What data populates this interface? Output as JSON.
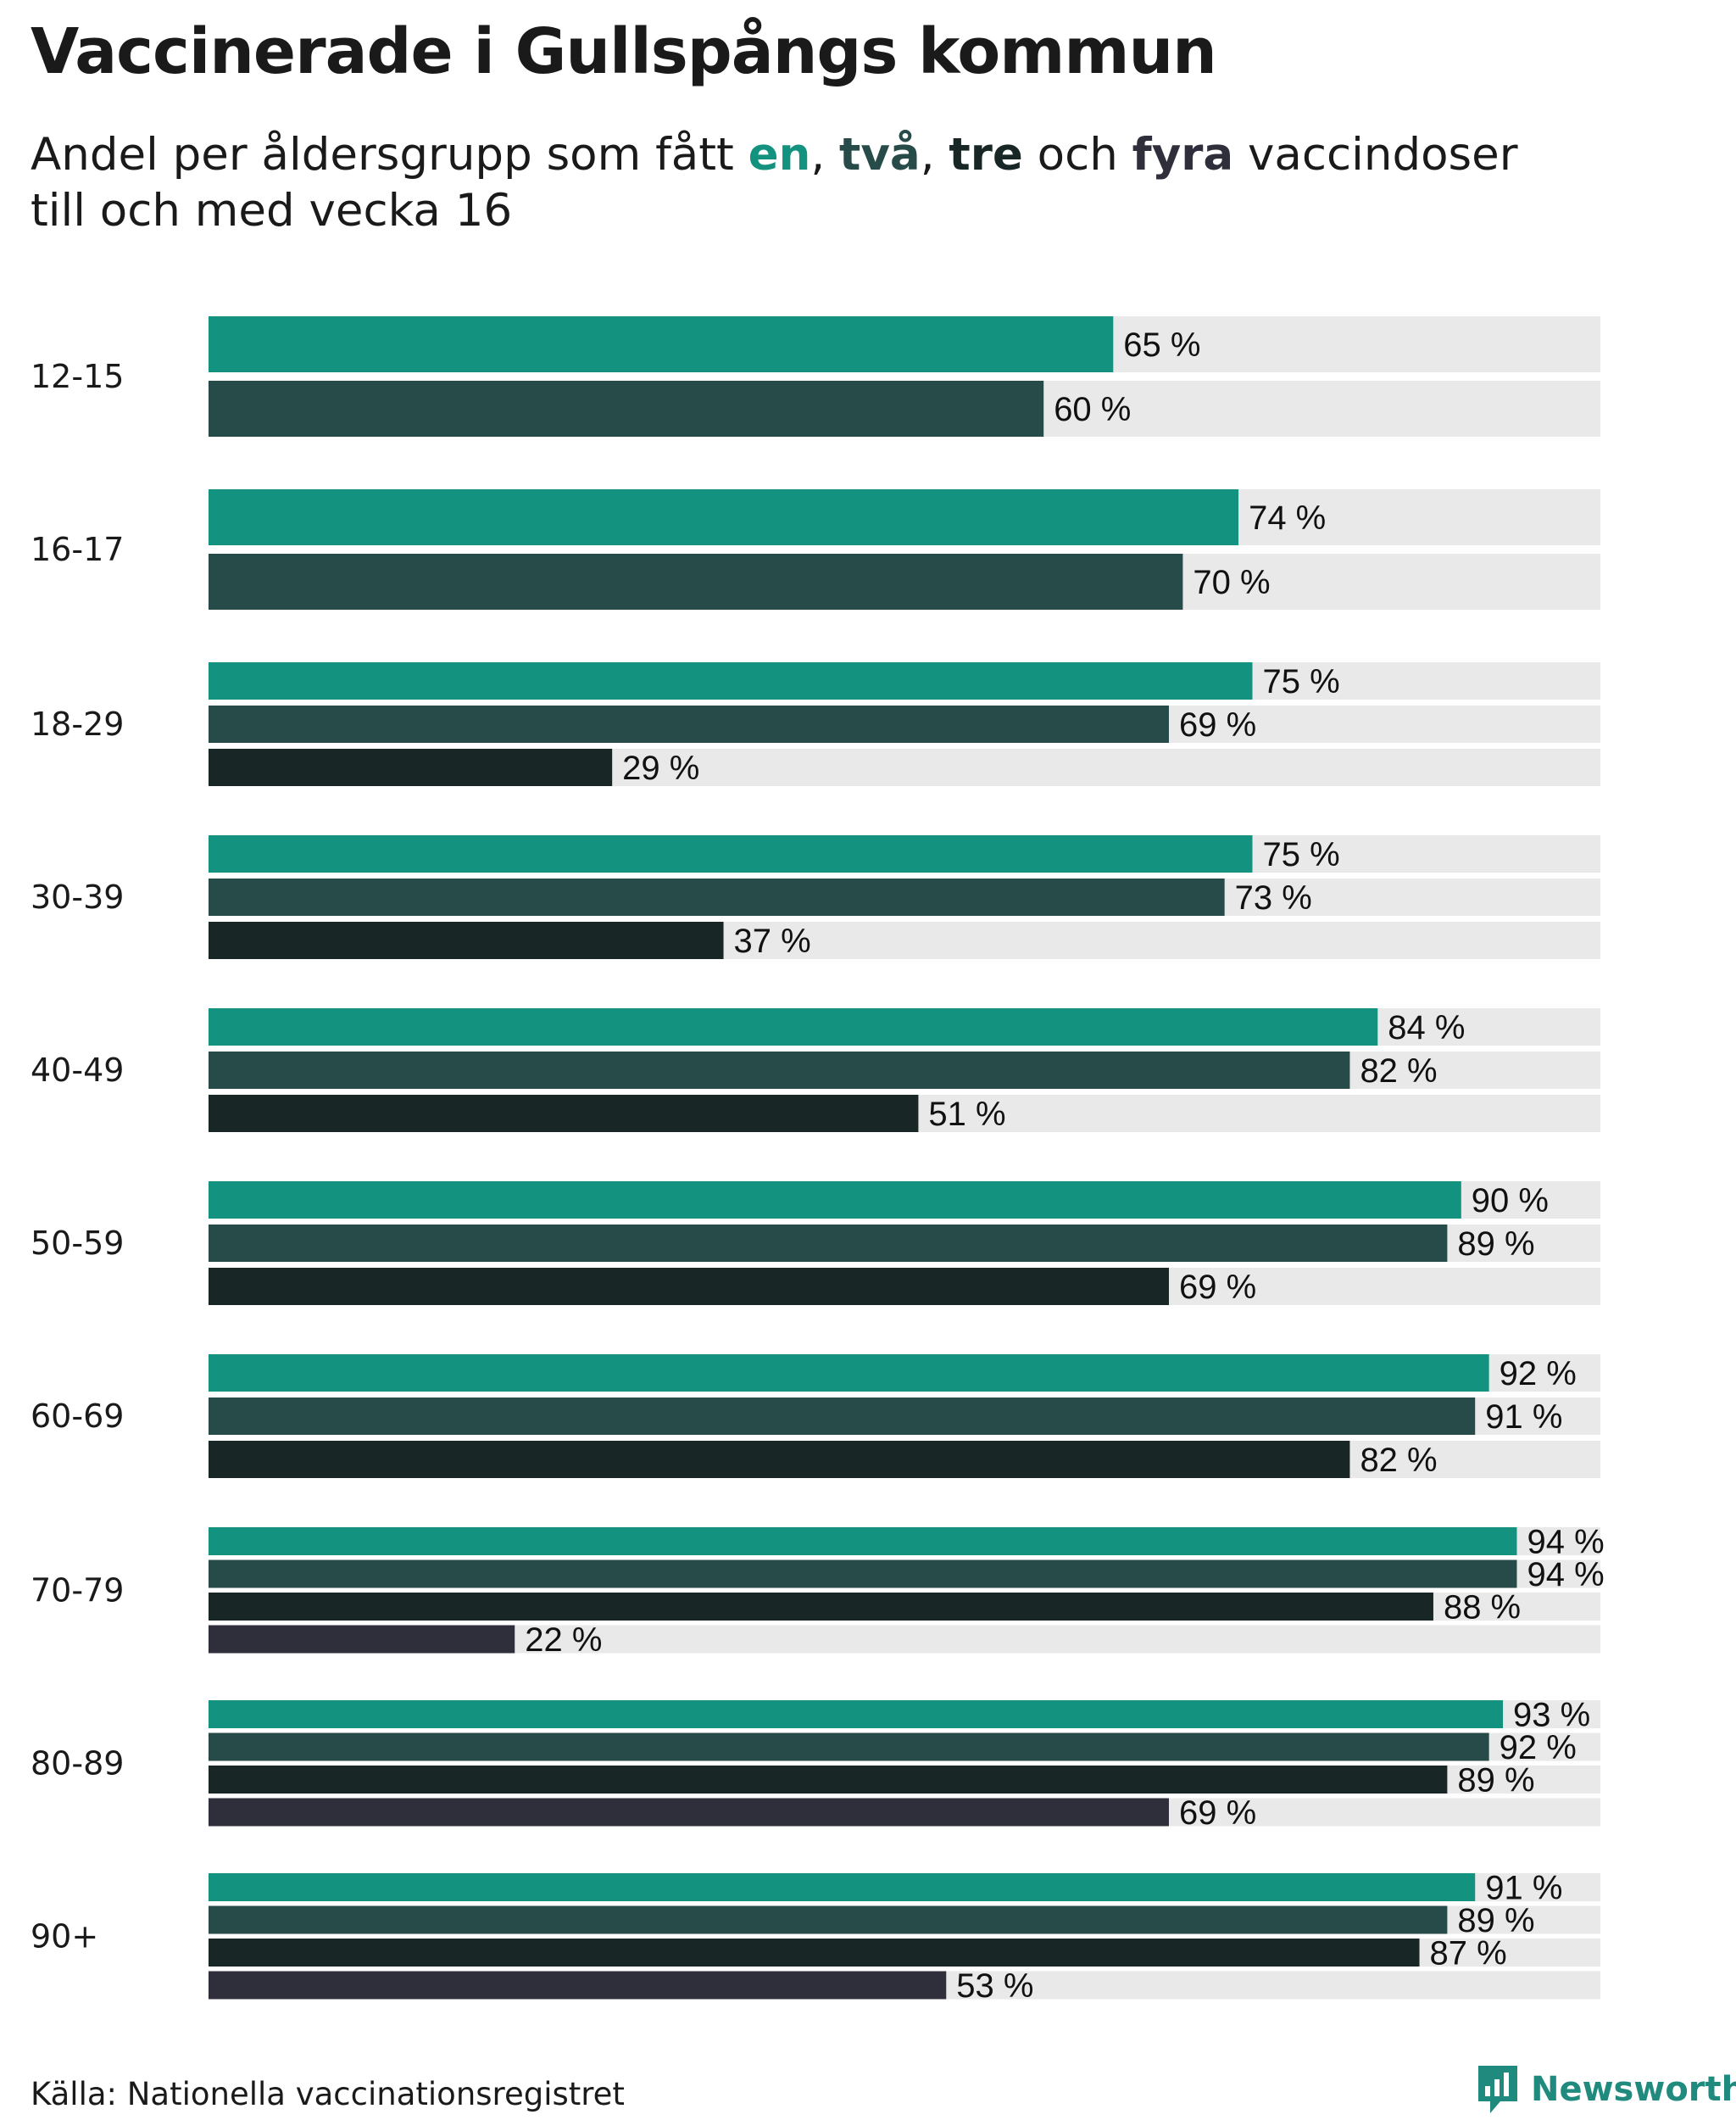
{
  "title": "Vaccinerade i Gullspångs kommun",
  "subtitle": {
    "prefix": "Andel per åldersgrupp som fått ",
    "dose1": "en",
    "sep1": ", ",
    "dose2": "två",
    "sep2": ", ",
    "dose3": "tre",
    "mid": " och ",
    "dose4": "fyra",
    "suffix": " vaccindoser",
    "line2": "till och med vecka 16"
  },
  "colors": {
    "dose1": "#13937f",
    "dose2": "#274b48",
    "dose3": "#182725",
    "dose4": "#2f2f3b",
    "track": "#e9e9e9"
  },
  "chart_data": {
    "type": "bar",
    "orientation": "horizontal",
    "title": "Vaccinerade i Gullspångs kommun",
    "xlim": [
      0,
      100
    ],
    "unit": "%",
    "categories": [
      "12-15",
      "16-17",
      "18-29",
      "30-39",
      "40-49",
      "50-59",
      "60-69",
      "70-79",
      "80-89",
      "90+"
    ],
    "series": [
      {
        "name": "en",
        "values": [
          65,
          74,
          75,
          75,
          84,
          90,
          92,
          94,
          93,
          91
        ]
      },
      {
        "name": "två",
        "values": [
          60,
          70,
          69,
          73,
          82,
          89,
          91,
          94,
          92,
          89
        ]
      },
      {
        "name": "tre",
        "values": [
          null,
          null,
          29,
          37,
          51,
          69,
          82,
          88,
          89,
          87
        ]
      },
      {
        "name": "fyra",
        "values": [
          null,
          null,
          null,
          null,
          null,
          null,
          null,
          22,
          69,
          53
        ]
      }
    ]
  },
  "source": "Källa: Nationella vaccinationsregistret",
  "logo": {
    "name": "Newsworthy",
    "icon": "newsworthy-logo-icon"
  }
}
